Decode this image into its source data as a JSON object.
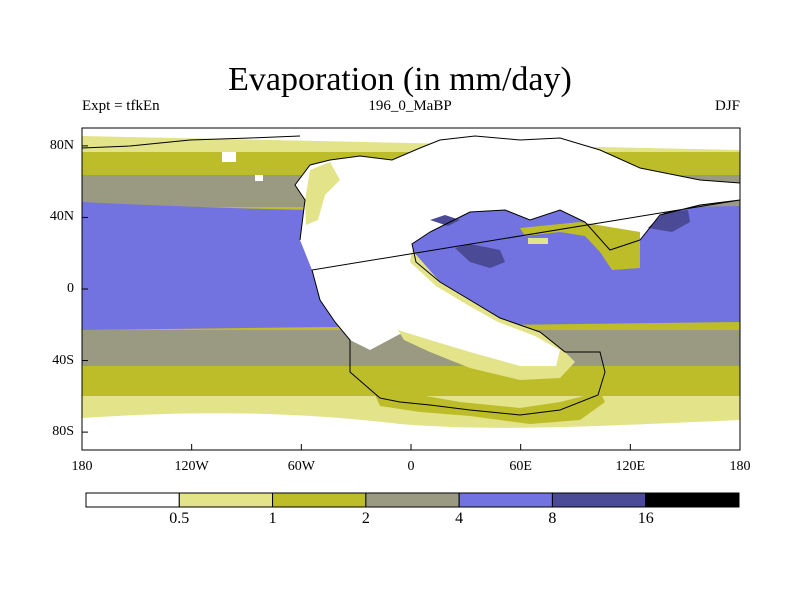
{
  "title": "Evaporation (in mm/day)",
  "left_string": "Expt = tfkEn",
  "center_string": "196_0_MaBP",
  "right_string": "DJF",
  "lat_ticks": [
    {
      "label": "80N",
      "lat": 80
    },
    {
      "label": "40N",
      "lat": 40
    },
    {
      "label": "0",
      "lat": 0
    },
    {
      "label": "40S",
      "lat": -40
    },
    {
      "label": "80S",
      "lat": -80
    }
  ],
  "lon_ticks": [
    {
      "label": "180",
      "lon": -180
    },
    {
      "label": "120W",
      "lon": -120
    },
    {
      "label": "60W",
      "lon": -60
    },
    {
      "label": "0",
      "lon": 0
    },
    {
      "label": "60E",
      "lon": 60
    },
    {
      "label": "120E",
      "lon": 120
    },
    {
      "label": "180",
      "lon": 180
    }
  ],
  "colorbar": {
    "levels": [
      "0.5",
      "1",
      "2",
      "4",
      "8",
      "16"
    ],
    "colors": [
      "#ffffff",
      "#e3e38a",
      "#bdbd2a",
      "#9a9a82",
      "#7272e0",
      "#4a4a96",
      "#000000"
    ]
  }
}
